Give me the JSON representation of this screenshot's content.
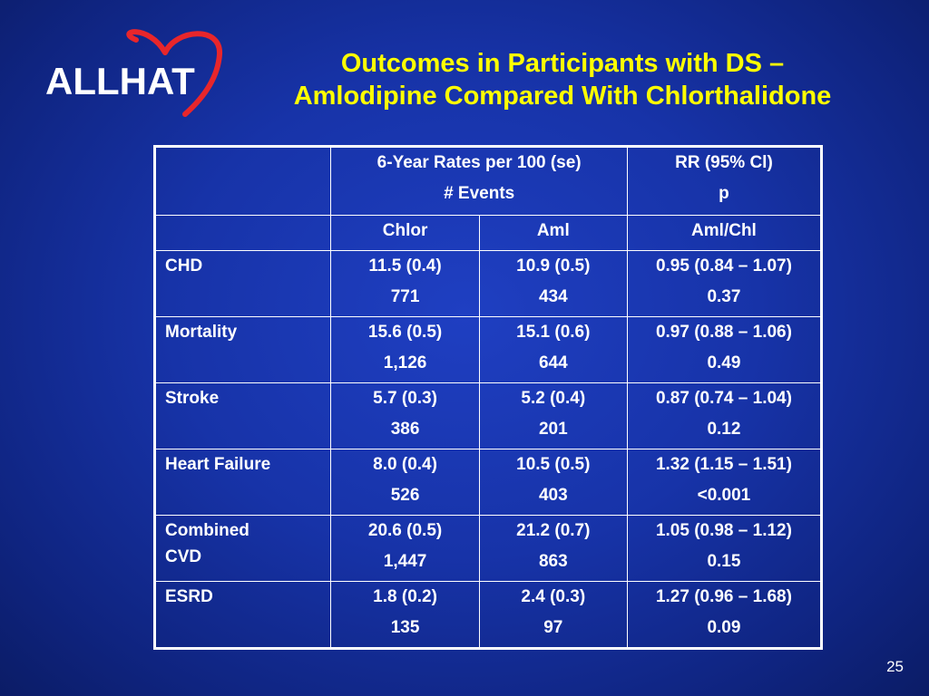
{
  "logo": {
    "text": "ALLHAT",
    "heart_color": "#e8262b"
  },
  "title": {
    "line1": "Outcomes in Participants with DS –",
    "line2": "Amlodipine Compared With Chlorthalidone"
  },
  "table": {
    "header": {
      "rates_line1": "6-Year Rates per 100 (se)",
      "rates_line2": "# Events",
      "rr_line1": "RR (95% Cl)",
      "rr_line2": "p"
    },
    "subheader": {
      "chlor": "Chlor",
      "aml": "Aml",
      "ratio": "Aml/Chl"
    },
    "rows": [
      {
        "label": "CHD",
        "chlor_rate": "11.5 (0.4)",
        "chlor_events": "771",
        "aml_rate": "10.9 (0.5)",
        "aml_events": "434",
        "rr": "0.95 (0.84 – 1.07)",
        "p": "0.37"
      },
      {
        "label": "Mortality",
        "chlor_rate": "15.6 (0.5)",
        "chlor_events": "1,126",
        "aml_rate": "15.1 (0.6)",
        "aml_events": "644",
        "rr": "0.97 (0.88 – 1.06)",
        "p": "0.49"
      },
      {
        "label": "Stroke",
        "chlor_rate": "5.7 (0.3)",
        "chlor_events": "386",
        "aml_rate": "5.2 (0.4)",
        "aml_events": "201",
        "rr": "0.87 (0.74 – 1.04)",
        "p": "0.12"
      },
      {
        "label": "Heart Failure",
        "chlor_rate": "8.0 (0.4)",
        "chlor_events": "526",
        "aml_rate": "10.5 (0.5)",
        "aml_events": "403",
        "rr": "1.32 (1.15 – 1.51)",
        "p": "<0.001"
      },
      {
        "label_line1": "Combined",
        "label_line2": "CVD",
        "chlor_rate": "20.6 (0.5)",
        "chlor_events": "1,447",
        "aml_rate": "21.2 (0.7)",
        "aml_events": "863",
        "rr": "1.05 (0.98 – 1.12)",
        "p": "0.15"
      },
      {
        "label": "ESRD",
        "chlor_rate": "1.8 (0.2)",
        "chlor_events": "135",
        "aml_rate": "2.4 (0.3)",
        "aml_events": "97",
        "rr": "1.27 (0.96 – 1.68)",
        "p": "0.09"
      }
    ]
  },
  "page_number": "25"
}
